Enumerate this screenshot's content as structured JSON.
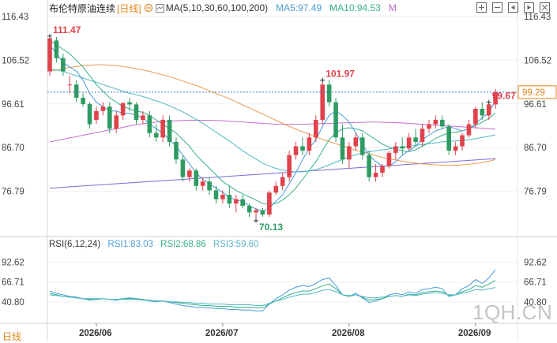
{
  "header": {
    "symbol": "布伦特原油连续",
    "period": "[日线]",
    "ma_label": "MA(5,10,30,60,100,200)",
    "ma5": "MA5:97.49",
    "ma10": "MA10:94.53",
    "more": "M"
  },
  "rsi_header": {
    "title": "RSI(6,12,24)",
    "rsi1": "RSI1:83.03",
    "rsi2": "RSI2:68.86",
    "rsi3": "RSI3:59.60"
  },
  "footer": {
    "daily": "日线",
    "watermark": "1QH.CN"
  },
  "colors": {
    "up": "#e0424b",
    "down": "#2f9b62",
    "ma5": "#4a9bd9",
    "ma10": "#38b08a",
    "ma30": "#4fb8c4",
    "ma60": "#c46fcf",
    "ma100": "#e89a52",
    "ma200": "#7a6bd6",
    "period": "#e4851a",
    "price_tag": "#e4851a"
  },
  "icons": [
    "zoom-in-icon",
    "zoom-out-icon",
    "move-left-icon",
    "move-right-icon",
    "cross-icon"
  ],
  "chart_data": [
    {
      "type": "candlestick",
      "title": "布伦特原油连续 [日线]",
      "y_ticks": [
        "116.43",
        "106.52",
        "96.61",
        "86.70",
        "76.79"
      ],
      "ylim": [
        66.88,
        116.43
      ],
      "x_ticks": [
        "2026/06",
        "2026/07",
        "2026/08",
        "2026/09"
      ],
      "annotations": [
        {
          "label": "111.47",
          "value": 111.47,
          "kind": "high"
        },
        {
          "label": "70.13",
          "value": 70.13,
          "kind": "low"
        },
        {
          "label": "101.97",
          "value": 101.97,
          "kind": "high"
        },
        {
          "label": "99.67",
          "value": 99.67,
          "kind": "high"
        }
      ],
      "last_price": "99.29",
      "last_price_value": 99.29,
      "candles": [
        [
          104,
          112,
          103,
          111.5
        ],
        [
          111,
          111.8,
          106,
          107
        ],
        [
          107,
          108,
          103,
          104
        ],
        [
          101,
          103,
          99,
          101
        ],
        [
          101,
          102,
          97,
          98
        ],
        [
          98,
          99,
          96,
          96.6
        ],
        [
          96.6,
          97,
          91,
          92
        ],
        [
          93,
          96,
          92,
          95
        ],
        [
          95,
          97,
          94,
          96
        ],
        [
          96,
          97,
          90,
          91
        ],
        [
          91,
          95,
          90,
          94
        ],
        [
          94,
          97,
          93,
          96.8
        ],
        [
          97,
          98,
          95,
          96.5
        ],
        [
          96.5,
          97,
          92,
          93
        ],
        [
          93,
          95,
          92,
          94
        ],
        [
          94,
          95,
          89,
          90
        ],
        [
          90,
          92,
          88,
          89
        ],
        [
          89,
          94,
          88,
          93
        ],
        [
          93,
          94,
          87,
          88
        ],
        [
          88,
          89,
          83,
          84
        ],
        [
          84,
          85,
          79,
          80
        ],
        [
          80,
          82,
          79,
          81.5
        ],
        [
          81.5,
          82,
          77,
          78
        ],
        [
          78,
          80,
          77,
          79
        ],
        [
          79,
          80,
          76,
          77
        ],
        [
          77,
          78,
          74,
          75
        ],
        [
          75,
          77,
          74,
          76
        ],
        [
          76,
          78,
          73,
          74
        ],
        [
          74,
          76,
          72,
          75
        ],
        [
          75,
          76,
          73,
          73.5
        ],
        [
          73.5,
          74,
          71,
          72
        ],
        [
          72,
          73,
          70.13,
          72.5
        ],
        [
          72.5,
          73,
          71,
          71.5
        ],
        [
          71.5,
          77,
          71,
          76.5
        ],
        [
          76.5,
          79,
          76,
          78
        ],
        [
          78,
          81,
          77,
          80
        ],
        [
          80,
          86,
          79,
          85
        ],
        [
          85,
          88,
          84,
          87
        ],
        [
          87,
          89,
          85,
          86
        ],
        [
          86,
          90,
          85,
          89
        ],
        [
          89,
          94,
          88,
          93
        ],
        [
          93,
          102,
          92,
          101
        ],
        [
          101,
          102,
          96,
          97
        ],
        [
          97,
          98,
          88,
          89
        ],
        [
          89,
          92,
          83,
          84
        ],
        [
          84,
          88,
          82,
          87
        ],
        [
          87,
          90,
          86,
          89
        ],
        [
          89,
          90,
          84,
          85
        ],
        [
          85,
          86,
          79,
          80
        ],
        [
          80,
          83,
          79,
          81
        ],
        [
          81,
          83,
          80,
          82.5
        ],
        [
          82.5,
          86,
          82,
          85.5
        ],
        [
          85.5,
          88,
          84,
          87
        ],
        [
          87,
          89,
          85,
          86.5
        ],
        [
          86.5,
          90,
          86,
          89
        ],
        [
          89,
          91,
          87,
          88
        ],
        [
          88,
          92,
          87,
          91
        ],
        [
          91,
          93,
          90,
          92
        ],
        [
          92,
          94,
          91,
          93
        ],
        [
          93,
          94,
          91,
          91.5
        ],
        [
          91.5,
          92,
          85,
          86
        ],
        [
          86,
          88,
          85,
          87
        ],
        [
          87,
          90,
          86,
          89.5
        ],
        [
          89.5,
          93,
          89,
          92
        ],
        [
          92,
          96,
          91,
          95.5
        ],
        [
          95.5,
          97,
          93,
          94
        ],
        [
          94,
          97,
          93,
          96.5
        ],
        [
          96.5,
          100,
          95.5,
          99.29
        ]
      ],
      "ma5": [
        110,
        108,
        106,
        105,
        104,
        102,
        99,
        97,
        96,
        95,
        95,
        94.5,
        94.5,
        94,
        93.5,
        92,
        91,
        90,
        88.5,
        87,
        85,
        83,
        81,
        79.5,
        78.5,
        77.5,
        76.5,
        75.5,
        74.8,
        74.5,
        73.5,
        72.8,
        72.2,
        73,
        74.5,
        76,
        78.5,
        81,
        84,
        86.5,
        88.5,
        91.5,
        94,
        95,
        94,
        92.5,
        90,
        87.5,
        85,
        83.5,
        82.5,
        82.5,
        83.5,
        85,
        86,
        87,
        88.5,
        89.5,
        90.5,
        91,
        91.5,
        91,
        90.5,
        91,
        92,
        93.5,
        94.5,
        97.49
      ],
      "ma10": [
        111,
        110,
        109,
        108,
        106.5,
        105,
        103,
        101,
        99.5,
        98,
        97,
        96,
        95.5,
        95,
        94.7,
        94,
        93,
        92,
        91,
        90,
        88.5,
        87,
        85,
        83.5,
        82,
        80.5,
        79,
        78,
        77,
        76.2,
        75.5,
        74.8,
        74,
        73.8,
        74,
        74.8,
        76,
        77.5,
        79.5,
        81.5,
        83.5,
        86,
        88.5,
        90,
        91,
        91.2,
        91,
        90.5,
        89.5,
        88.5,
        87.5,
        86.8,
        86.3,
        86,
        85.8,
        86.2,
        87,
        87.8,
        88.8,
        89.5,
        90,
        90.2,
        90.5,
        91,
        91.7,
        92.5,
        93.3,
        94.53
      ],
      "ma30": [
        104.5,
        104.3,
        104,
        103.5,
        103,
        102.5,
        102,
        101.5,
        101,
        100.5,
        100,
        99.5,
        99,
        98.7,
        98.3,
        97.8,
        97.3,
        96.8,
        96.2,
        95.5,
        94.8,
        94,
        93.1,
        92.2,
        91.2,
        90.2,
        89.2,
        88.2,
        87.1,
        86,
        85,
        84.1,
        83.2,
        82.5,
        82,
        81.6,
        81.3,
        81.2,
        81.2,
        81.4,
        81.7,
        82.2,
        82.8,
        83.4,
        84,
        84.6,
        85.1,
        85.5,
        85.8,
        86,
        86.2,
        86.4,
        86.6,
        86.8,
        87,
        87.2,
        87.4,
        87.6,
        87.8,
        88,
        88.1,
        88.2,
        88.3,
        88.5,
        88.7,
        89,
        89.3,
        89.6
      ],
      "ma60": [
        88,
        88.3,
        88.6,
        88.9,
        89.2,
        89.5,
        89.8,
        90.1,
        90.4,
        90.7,
        91,
        91.3,
        91.6,
        91.9,
        92.1,
        92.3,
        92.5,
        92.6,
        92.7,
        92.8,
        92.85,
        92.9,
        92.9,
        92.9,
        92.9,
        92.85,
        92.8,
        92.7,
        92.6,
        92.5,
        92.4,
        92.3,
        92.2,
        92.1,
        92,
        92,
        92,
        92,
        92,
        92.05,
        92.1,
        92.15,
        92.2,
        92.25,
        92.3,
        92.35,
        92.4,
        92.45,
        92.5,
        92.5,
        92.45,
        92.4,
        92.35,
        92.3,
        92.2,
        92.1,
        92,
        91.9,
        91.8,
        91.7,
        91.6,
        91.5,
        91.4,
        91.3,
        91.2,
        91.1,
        91,
        90.9
      ],
      "ma100": [
        104,
        104.3,
        104.6,
        104.9,
        105.1,
        105.3,
        105.4,
        105.5,
        105.5,
        105.4,
        105.3,
        105.1,
        104.9,
        104.6,
        104.3,
        104,
        103.6,
        103.2,
        102.8,
        102.3,
        101.8,
        101.3,
        100.8,
        100.2,
        99.6,
        99,
        98.4,
        97.8,
        97.1,
        96.4,
        95.7,
        95,
        94.3,
        93.6,
        92.9,
        92.2,
        91.5,
        90.9,
        90.3,
        89.7,
        89.1,
        88.6,
        88.1,
        87.6,
        87.1,
        86.6,
        86.1,
        85.7,
        85.3,
        84.9,
        84.5,
        84.2,
        83.9,
        83.6,
        83.4,
        83.2,
        83,
        82.9,
        82.8,
        82.7,
        82.7,
        82.7,
        82.8,
        82.9,
        83.1,
        83.3,
        83.6,
        84
      ],
      "ma200": [
        77.5,
        77.6,
        77.7,
        77.8,
        77.9,
        78,
        78.1,
        78.2,
        78.3,
        78.4,
        78.5,
        78.6,
        78.7,
        78.8,
        78.9,
        79,
        79.1,
        79.2,
        79.3,
        79.4,
        79.5,
        79.6,
        79.7,
        79.8,
        79.9,
        80,
        80.1,
        80.2,
        80.3,
        80.4,
        80.5,
        80.6,
        80.7,
        80.8,
        80.9,
        81,
        81.1,
        81.2,
        81.3,
        81.4,
        81.5,
        81.6,
        81.7,
        81.8,
        81.9,
        82,
        82.1,
        82.2,
        82.3,
        82.4,
        82.5,
        82.6,
        82.7,
        82.8,
        82.9,
        83,
        83.1,
        83.2,
        83.3,
        83.4,
        83.5,
        83.6,
        83.7,
        83.8,
        83.9,
        84,
        84.1,
        84.2
      ]
    },
    {
      "type": "line",
      "title": "RSI(6,12,24)",
      "y_ticks": [
        "92.62",
        "66.71",
        "40.80"
      ],
      "ylim": [
        14.89,
        105.57
      ],
      "series": [
        {
          "name": "RSI1",
          "values": [
            55,
            52,
            50,
            48,
            47,
            45,
            43,
            44,
            45,
            44,
            43,
            45,
            46,
            45,
            44,
            42,
            41,
            42,
            40,
            38,
            36,
            35,
            34,
            33,
            33,
            32,
            32,
            31,
            31,
            30,
            30,
            29,
            29,
            38,
            45,
            50,
            56,
            60,
            62,
            61,
            65,
            70,
            72,
            62,
            50,
            48,
            52,
            46,
            40,
            42,
            45,
            50,
            52,
            50,
            54,
            52,
            57,
            58,
            60,
            58,
            48,
            50,
            58,
            62,
            70,
            65,
            72,
            83.03
          ]
        },
        {
          "name": "RSI2",
          "values": [
            52,
            50,
            48,
            47,
            46,
            45,
            44,
            44,
            45,
            44,
            44,
            45,
            45,
            45,
            44,
            43,
            42,
            42,
            41,
            40,
            39,
            38,
            37,
            36,
            36,
            35,
            35,
            35,
            34,
            34,
            34,
            33,
            33,
            38,
            42,
            46,
            50,
            53,
            55,
            55,
            58,
            62,
            64,
            58,
            50,
            48,
            50,
            47,
            43,
            44,
            45,
            48,
            49,
            48,
            51,
            50,
            53,
            54,
            55,
            54,
            49,
            50,
            54,
            57,
            62,
            60,
            64,
            68.86
          ]
        },
        {
          "name": "RSI3",
          "values": [
            50,
            49,
            48,
            47,
            46,
            45,
            45,
            45,
            45,
            44,
            44,
            44,
            44,
            44,
            43,
            43,
            42,
            42,
            41,
            41,
            40,
            40,
            39,
            39,
            38,
            38,
            38,
            37,
            37,
            37,
            37,
            36,
            36,
            39,
            42,
            44,
            47,
            49,
            51,
            51,
            53,
            56,
            57,
            54,
            50,
            49,
            50,
            48,
            46,
            46,
            47,
            48,
            49,
            48,
            50,
            49,
            51,
            52,
            53,
            52,
            50,
            50,
            52,
            54,
            57,
            56,
            58,
            59.6
          ]
        }
      ]
    }
  ]
}
